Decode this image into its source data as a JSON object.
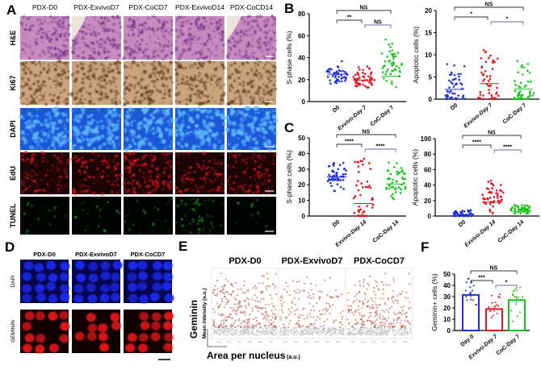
{
  "panelA": {
    "label": "A",
    "columns": [
      "PDX-D0",
      "PDX-ExvivoD7",
      "PDX-CoCD7",
      "PDX-ExvivoD14",
      "PDX-CoCD14"
    ],
    "rows": [
      "H&E",
      "Ki67",
      "DAPI",
      "EdU",
      "TUNEL"
    ]
  },
  "panelD": {
    "label": "D",
    "columns": [
      "PDX-D0",
      "PDX-ExvivoD7",
      "PDX-CoCD7"
    ],
    "rows": [
      "DAPI",
      "GEMININ"
    ]
  },
  "panelE": {
    "label": "E",
    "columns": [
      "PDX-D0",
      "PDX-ExvivoD7",
      "PDX-CoCD7"
    ],
    "ylabel": "Geminin",
    "ylabel_sub": "Mean intensity (a.u.)",
    "xlabel": "Area per nucleus",
    "xlabel_unit": "(a.u.)"
  },
  "colors": {
    "D0": "#1f2fe0",
    "Exvivo": "#e8101a",
    "CoC": "#18c41a",
    "scatter": "#b5463a",
    "scatter_low": "#bdbdbd"
  },
  "chart_data": [
    {
      "id": "B",
      "label": "B",
      "type": "scatter",
      "ylabel": "S-phase cells (%)",
      "categories": [
        "D0",
        "Exvivo-Day 7",
        "CoC-Day 7"
      ],
      "ylim": [
        0,
        80
      ],
      "yticks": [
        0,
        20,
        40,
        60,
        80
      ],
      "series": [
        {
          "mean": 25,
          "min": 12,
          "max": 39
        },
        {
          "mean": 19.5,
          "min": 3,
          "max": 36
        },
        {
          "mean": 23,
          "min": 7,
          "max": 60
        }
      ],
      "comparisons": [
        {
          "pair": [
            0,
            2
          ],
          "label": "NS"
        },
        {
          "pair": [
            0,
            1
          ],
          "label": "**"
        },
        {
          "pair": [
            1,
            2
          ],
          "label": "NS"
        }
      ]
    },
    {
      "id": "B2",
      "type": "scatter",
      "ylabel": "Apoptotic cells (%)",
      "categories": [
        "D0",
        "Exvivo-Day 7",
        "CoC-Day 7"
      ],
      "ylim": [
        0,
        20
      ],
      "yticks": [
        0,
        5,
        10,
        15,
        20
      ],
      "series": [
        {
          "mean": 2.2,
          "min": 0,
          "max": 8
        },
        {
          "mean": 3.5,
          "min": 0,
          "max": 12
        },
        {
          "mean": 2.3,
          "min": 0,
          "max": 9.5
        }
      ],
      "comparisons": [
        {
          "pair": [
            0,
            2
          ],
          "label": "NS"
        },
        {
          "pair": [
            0,
            1
          ],
          "label": "*"
        },
        {
          "pair": [
            1,
            2
          ],
          "label": "*"
        }
      ]
    },
    {
      "id": "C",
      "label": "C",
      "type": "scatter",
      "ylabel": "S-phase cells (%)",
      "categories": [
        "D0",
        "Exvivo-Day 14",
        "CoC-Day 14"
      ],
      "ylim": [
        0,
        50
      ],
      "yticks": [
        0,
        10,
        20,
        30,
        40,
        50
      ],
      "series": [
        {
          "mean": 25,
          "min": 11,
          "max": 39
        },
        {
          "mean": 8,
          "min": 0,
          "max": 37
        },
        {
          "mean": 20.5,
          "min": 5,
          "max": 39
        }
      ],
      "comparisons": [
        {
          "pair": [
            0,
            2
          ],
          "label": "NS"
        },
        {
          "pair": [
            0,
            1
          ],
          "label": "****"
        },
        {
          "pair": [
            1,
            2
          ],
          "label": "****"
        }
      ]
    },
    {
      "id": "C2",
      "type": "scatter",
      "ylabel": "Apoptotic cells (%)",
      "categories": [
        "D0",
        "Exvivo-Day 14",
        "CoC-Day 14"
      ],
      "ylim": [
        0,
        100
      ],
      "yticks": [
        0,
        20,
        40,
        60,
        80,
        100
      ],
      "series": [
        {
          "mean": 2,
          "min": 0,
          "max": 8
        },
        {
          "mean": 18,
          "min": 0,
          "max": 56
        },
        {
          "mean": 6,
          "min": 0,
          "max": 18
        }
      ],
      "comparisons": [
        {
          "pair": [
            0,
            2
          ],
          "label": "NS"
        },
        {
          "pair": [
            0,
            1
          ],
          "label": "****"
        },
        {
          "pair": [
            1,
            2
          ],
          "label": "****"
        }
      ]
    },
    {
      "id": "F",
      "label": "F",
      "type": "bar",
      "ylabel": "Geminin+ cells (%)",
      "categories": [
        "Day 0",
        "Exvivo-Day 7",
        "CoC-Day 7"
      ],
      "ylim": [
        0,
        50
      ],
      "yticks": [
        0,
        10,
        20,
        30,
        40,
        50
      ],
      "values": [
        31.5,
        19,
        27
      ],
      "ranges": [
        [
          20,
          47
        ],
        [
          8,
          32
        ],
        [
          8,
          41
        ]
      ],
      "comparisons": [
        {
          "pair": [
            0,
            2
          ],
          "label": "NS"
        },
        {
          "pair": [
            0,
            1
          ],
          "label": "***"
        },
        {
          "pair": [
            1,
            2
          ],
          "label": "*"
        }
      ]
    }
  ]
}
